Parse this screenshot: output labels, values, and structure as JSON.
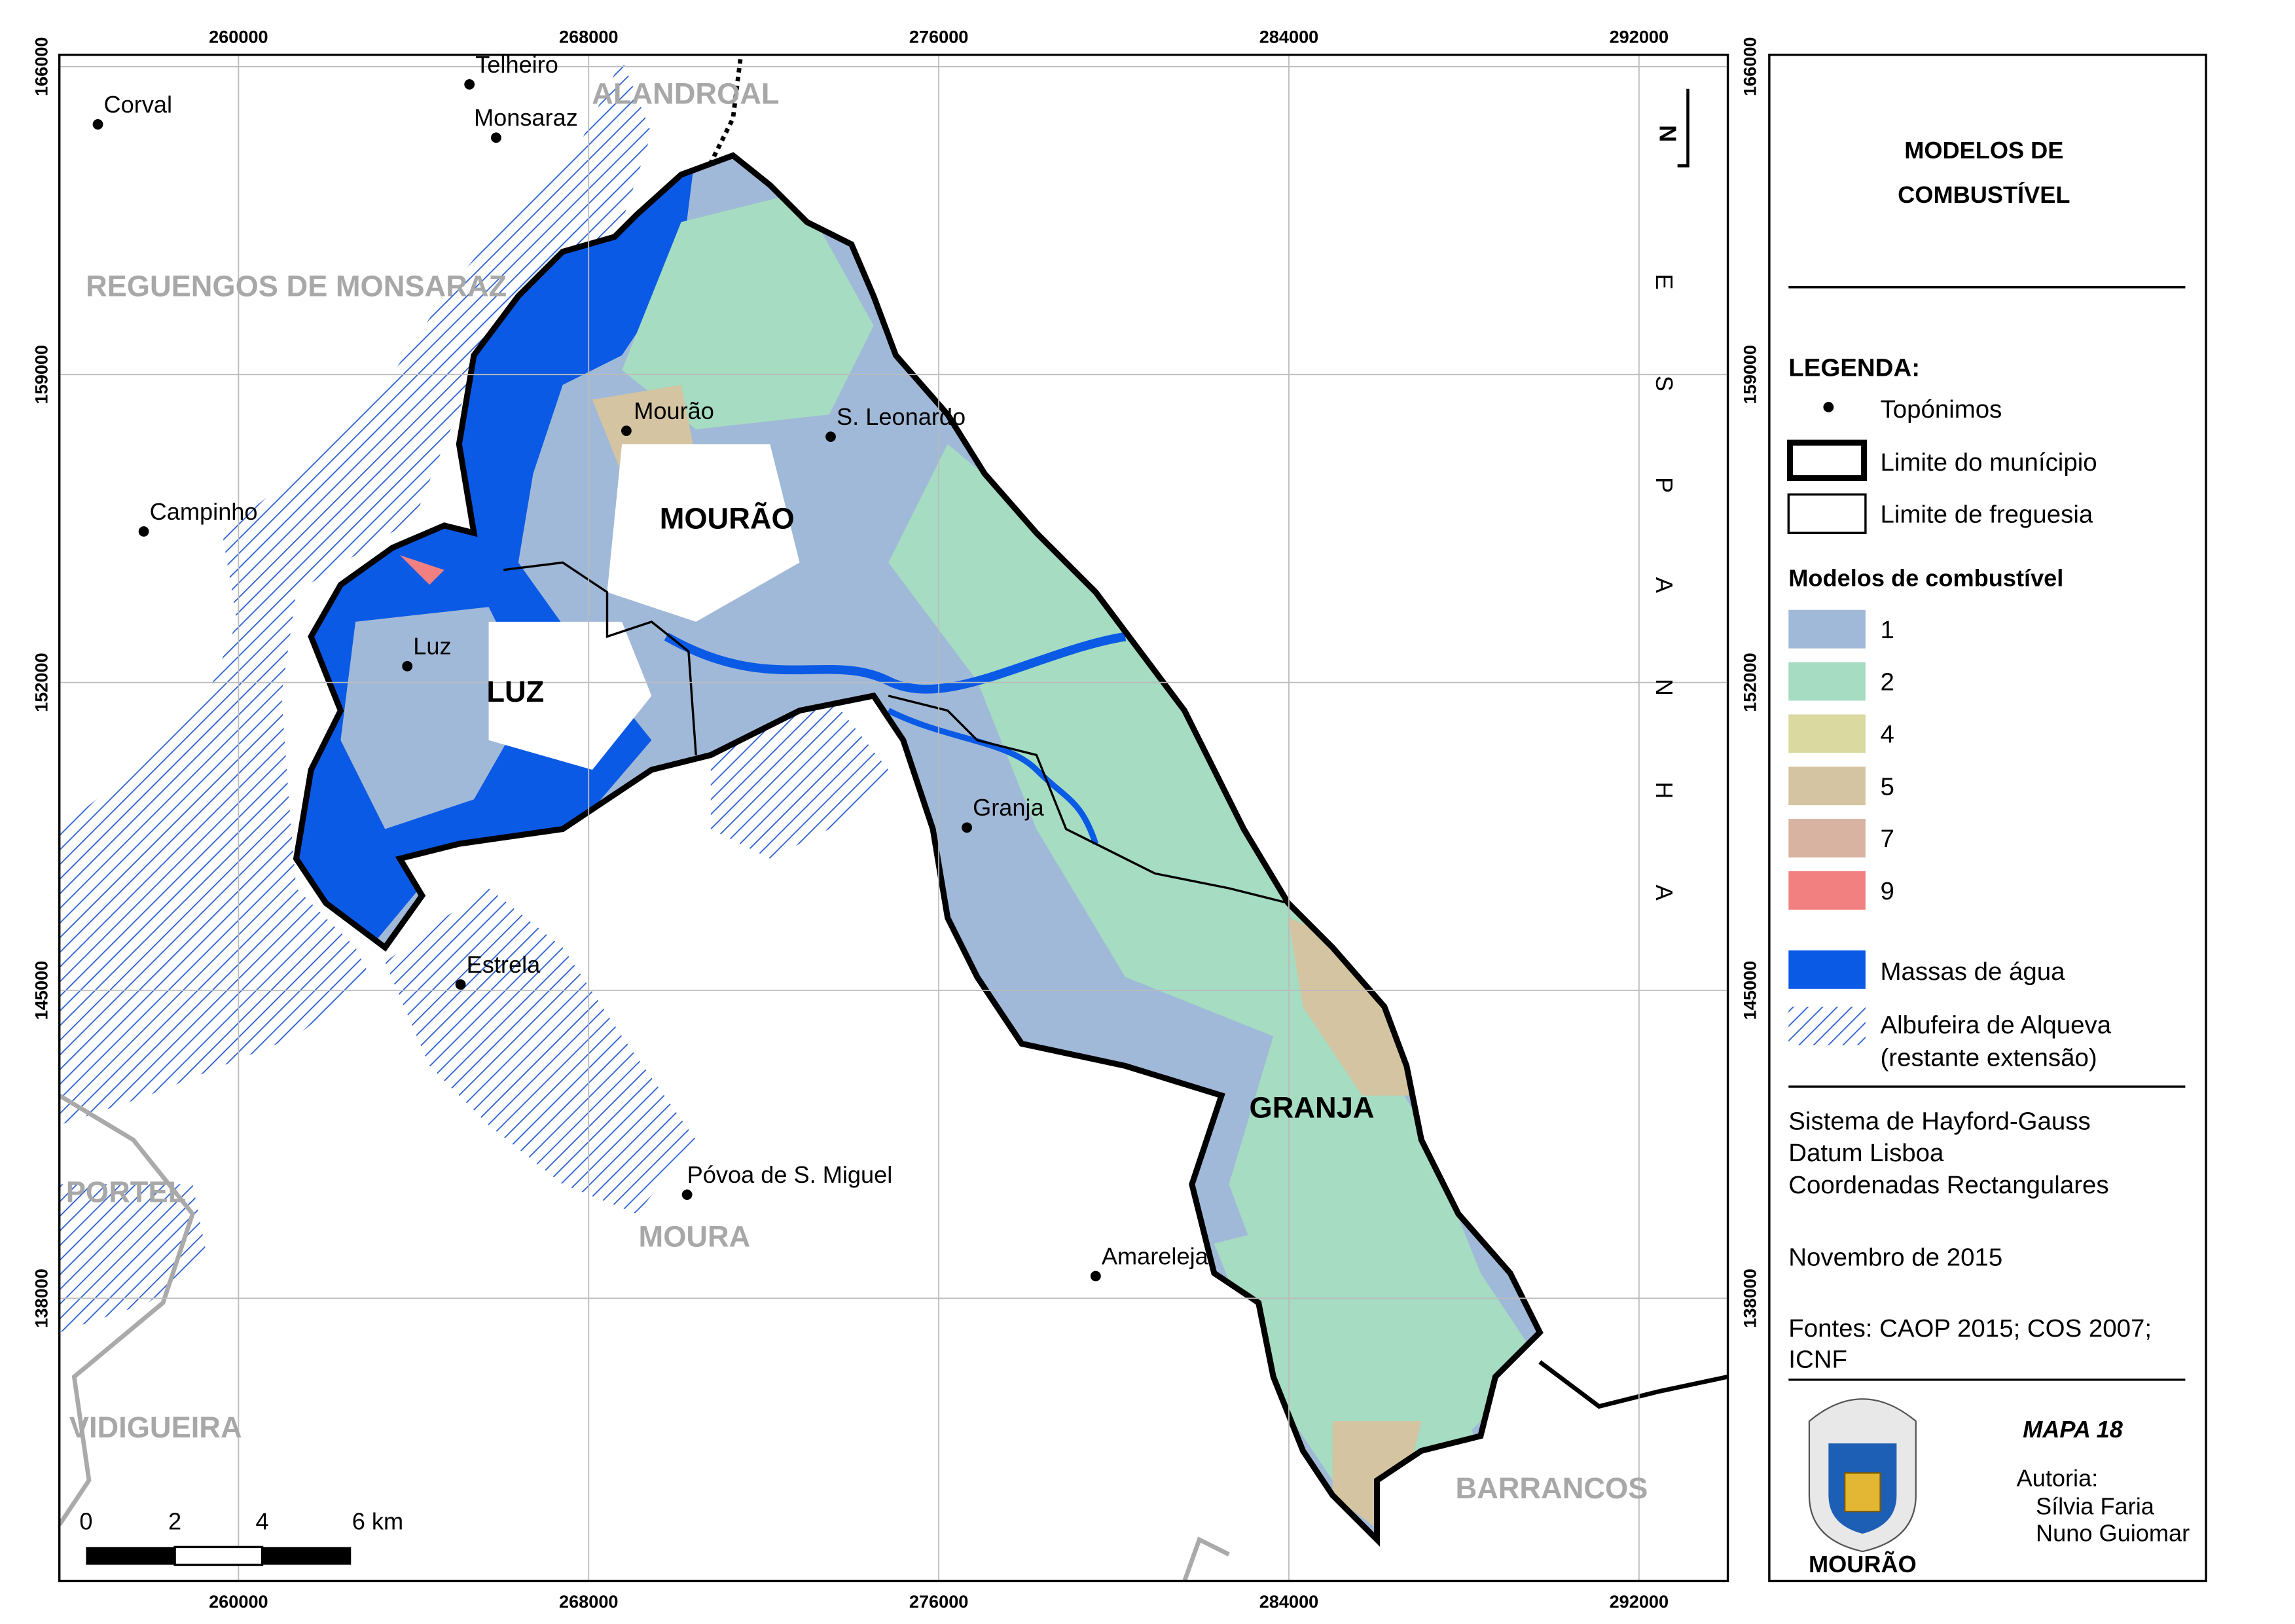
{
  "map": {
    "title_lines": [
      "MODELOS DE",
      "COMBUSTÍVEL"
    ],
    "x_ticks": [
      260000,
      268000,
      276000,
      284000,
      292000
    ],
    "y_ticks": [
      166000,
      159000,
      152000,
      145000,
      138000
    ],
    "north_label": "N",
    "spain_label": "ESPANHA",
    "regions": [
      "ALANDROAL",
      "REGUENGOS DE MONSARAZ",
      "PORTEL",
      "MOURA",
      "VIDIGUEIRA",
      "BARRANCOS"
    ],
    "parishes": [
      "MOURÃO",
      "LUZ",
      "GRANJA"
    ],
    "toponyms": [
      "Corval",
      "Telheiro",
      "Monsaraz",
      "Mourão",
      "S. Leonardo",
      "Campinho",
      "Luz",
      "Granja",
      "Estrela",
      "Póvoa de S. Miguel",
      "Amareleja"
    ],
    "legend": {
      "heading": "LEGENDA:",
      "toponyms": "Topónimos",
      "municipality": "Limite do munícipio",
      "parish": "Limite de freguesia",
      "fuel_heading": "Modelos de combustível",
      "fuel_models": [
        {
          "label": "1",
          "color": "#a1b9d8"
        },
        {
          "label": "2",
          "color": "#a5dcc2"
        },
        {
          "label": "4",
          "color": "#d9d9a0"
        },
        {
          "label": "5",
          "color": "#d5c4a1"
        },
        {
          "label": "7",
          "color": "#d8b3a2"
        },
        {
          "label": "9",
          "color": "#f28080"
        }
      ],
      "water": {
        "label": "Massas de água",
        "color": "#0a5ae6"
      },
      "reservoir": [
        "Albufeira de Alqueva",
        "(restante extensão)"
      ]
    },
    "projection": [
      "Sistema de Hayford-Gauss",
      "Datum Lisboa",
      "Coordenadas Rectangulares"
    ],
    "date": "Novembro de 2015",
    "sources": [
      "Fontes: CAOP 2015; COS 2007;",
      "ICNF"
    ],
    "map_number": "MAPA 18",
    "authorship": "Autoria:",
    "authors": [
      "Sílvia Faria",
      "Nuno Guiomar"
    ],
    "crest_label": "MOURÃO",
    "scale_labels": [
      "0",
      "2",
      "4",
      "6 km"
    ]
  }
}
